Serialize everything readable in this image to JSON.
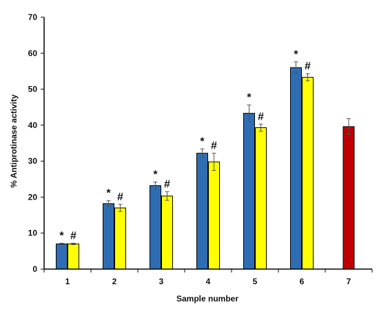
{
  "chart_data": {
    "type": "bar",
    "title": "",
    "xlabel": "Sample number",
    "ylabel": "% Antiprotinase activity",
    "categories": [
      "1",
      "2",
      "3",
      "4",
      "5",
      "6",
      "7"
    ],
    "ylim": [
      0,
      70
    ],
    "yticks": [
      0,
      10,
      20,
      30,
      40,
      50,
      60,
      70
    ],
    "grid": false,
    "series": [
      {
        "color": "#2E6DB4",
        "values": [
          7.0,
          18.2,
          23.2,
          32.2,
          43.3,
          56.0,
          null
        ],
        "errors": [
          0.2,
          0.8,
          1.0,
          1.2,
          2.3,
          1.6,
          null
        ],
        "marker": "*"
      },
      {
        "color": "#FFFF00",
        "values": [
          7.0,
          17.0,
          20.3,
          29.8,
          39.3,
          53.3,
          null
        ],
        "errors": [
          0.2,
          1.0,
          1.2,
          2.4,
          1.0,
          1.0,
          null
        ],
        "marker": "#"
      },
      {
        "color": "#C00000",
        "values": [
          null,
          null,
          null,
          null,
          null,
          null,
          39.6
        ],
        "errors": [
          null,
          null,
          null,
          null,
          null,
          null,
          2.2
        ],
        "marker": ""
      }
    ]
  }
}
